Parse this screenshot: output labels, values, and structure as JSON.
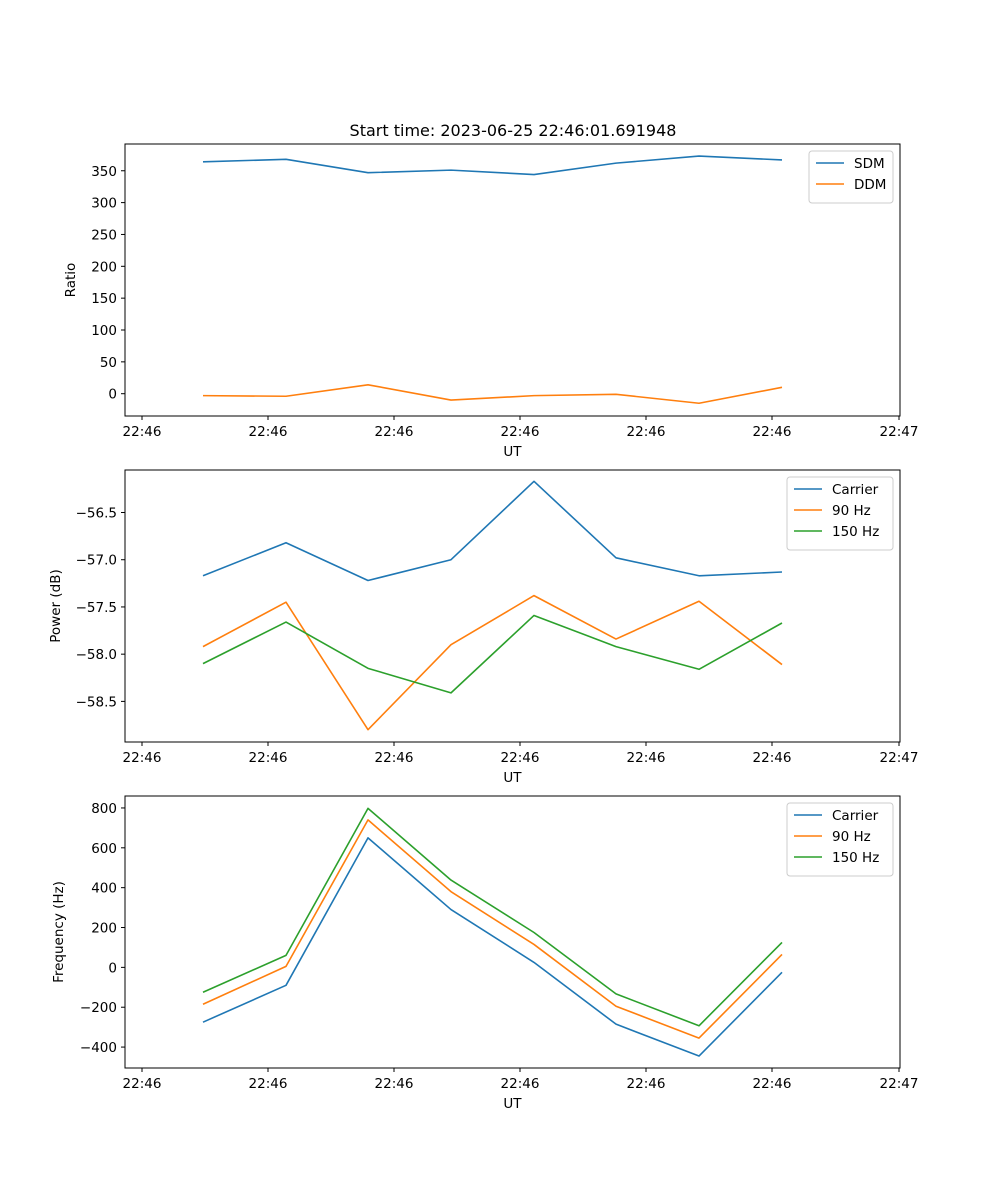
{
  "figure": {
    "title": "Start time: 2023-06-25 22:46:01.691948"
  },
  "chart_data": [
    {
      "type": "line",
      "xlabel": "UT",
      "ylabel": "Ratio",
      "xticks": [
        "22:46",
        "22:46",
        "22:46",
        "22:46",
        "22:46",
        "22:46",
        "22:46",
        "22:47"
      ],
      "yticks": [
        "0",
        "50",
        "100",
        "150",
        "200",
        "250",
        "300",
        "350"
      ],
      "ylim": [
        -35,
        392
      ],
      "legend_position": "upper right",
      "series": [
        {
          "name": "SDM",
          "color": "#1f77b4",
          "values": [
            364,
            368,
            347,
            351,
            344,
            362,
            373,
            367
          ]
        },
        {
          "name": "DDM",
          "color": "#ff7f0e",
          "values": [
            -3,
            -4,
            14,
            -10,
            -3,
            -1,
            -15,
            10
          ]
        }
      ]
    },
    {
      "type": "line",
      "xlabel": "UT",
      "ylabel": "Power (dB)",
      "xticks": [
        "22:46",
        "22:46",
        "22:46",
        "22:46",
        "22:46",
        "22:46",
        "22:46",
        "22:47"
      ],
      "yticks": [
        "-56.5",
        "-57.0",
        "-57.5",
        "-58.0",
        "-58.5"
      ],
      "ylim": [
        -58.93,
        -56.05
      ],
      "legend_position": "upper right",
      "series": [
        {
          "name": "Carrier",
          "color": "#1f77b4",
          "values": [
            -57.17,
            -56.82,
            -57.22,
            -57.0,
            -56.17,
            -56.98,
            -57.17,
            -57.13
          ]
        },
        {
          "name": "90 Hz",
          "color": "#ff7f0e",
          "values": [
            -57.92,
            -57.45,
            -58.8,
            -57.9,
            -57.38,
            -57.84,
            -57.44,
            -58.11
          ]
        },
        {
          "name": "150 Hz",
          "color": "#2ca02c",
          "values": [
            -58.1,
            -57.66,
            -58.15,
            -58.41,
            -57.59,
            -57.92,
            -58.16,
            -57.67
          ]
        }
      ]
    },
    {
      "type": "line",
      "xlabel": "UT",
      "ylabel": "Frequency (Hz)",
      "xticks": [
        "22:46",
        "22:46",
        "22:46",
        "22:46",
        "22:46",
        "22:46",
        "22:46",
        "22:47"
      ],
      "yticks": [
        "800",
        "600",
        "400",
        "200",
        "0",
        "-200",
        "-400"
      ],
      "ylim": [
        -505,
        860
      ],
      "legend_position": "upper right",
      "series": [
        {
          "name": "Carrier",
          "color": "#1f77b4",
          "values": [
            -275,
            -90,
            650,
            290,
            25,
            -285,
            -445,
            -25
          ]
        },
        {
          "name": "90 Hz",
          "color": "#ff7f0e",
          "values": [
            -185,
            5,
            740,
            380,
            115,
            -195,
            -355,
            65
          ]
        },
        {
          "name": "150 Hz",
          "color": "#2ca02c",
          "values": [
            -125,
            60,
            798,
            438,
            175,
            -133,
            -293,
            125
          ]
        }
      ]
    }
  ]
}
